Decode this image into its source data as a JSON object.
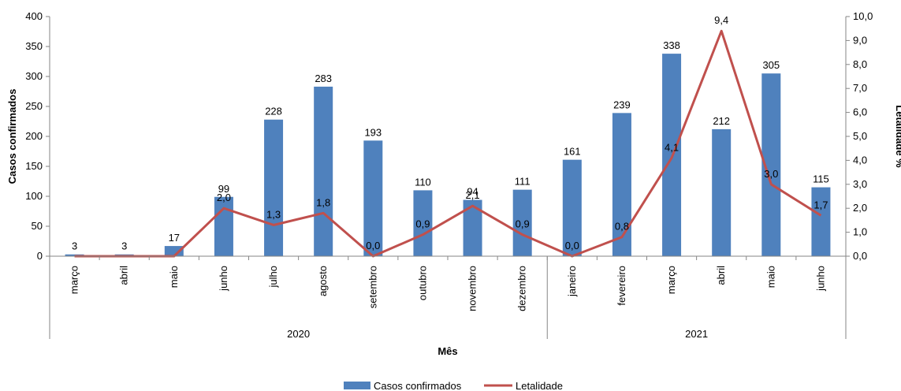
{
  "chart_data": {
    "type": "bar+line",
    "title": "",
    "xlabel": "Mês",
    "ylabel_left": "Casos confirmados",
    "ylabel_right": "Letalidade %",
    "categories": [
      "março",
      "abril",
      "maio",
      "junho",
      "julho",
      "agosto",
      "setembro",
      "outubro",
      "novembro",
      "dezembro",
      "janeiro",
      "fevereiro",
      "março",
      "abril",
      "maio",
      "junho"
    ],
    "year_groups": [
      {
        "label": "2020",
        "start": 0,
        "end": 9
      },
      {
        "label": "2021",
        "start": 10,
        "end": 15
      }
    ],
    "series": [
      {
        "name": "Casos confirmados",
        "kind": "bar",
        "axis": "left",
        "color": "#4F81BD",
        "values": [
          3,
          3,
          17,
          99,
          228,
          283,
          193,
          110,
          94,
          111,
          161,
          239,
          338,
          212,
          305,
          115
        ],
        "labels": [
          "3",
          "3",
          "17",
          "99",
          "228",
          "283",
          "193",
          "110",
          "94",
          "111",
          "161",
          "239",
          "338",
          "212",
          "305",
          "115"
        ]
      },
      {
        "name": "Letalidade",
        "kind": "line",
        "axis": "right",
        "color": "#C0504D",
        "values": [
          0,
          0,
          0,
          2.0,
          1.3,
          1.8,
          0.0,
          0.9,
          2.1,
          0.9,
          0.0,
          0.8,
          4.1,
          9.4,
          3.0,
          1.7
        ],
        "labels": [
          "",
          "",
          "",
          "2,0",
          "1,3",
          "1,8",
          "0,0",
          "0,9",
          "2,1",
          "0,9",
          "0,0",
          "0,8",
          "4,1",
          "9,4",
          "3,0",
          "1,7"
        ]
      }
    ],
    "y_left": {
      "min": 0,
      "max": 400,
      "step": 50,
      "ticks": [
        "0",
        "50",
        "100",
        "150",
        "200",
        "250",
        "300",
        "350",
        "400"
      ]
    },
    "y_right": {
      "min": 0,
      "max": 10,
      "step": 1,
      "ticks": [
        "0,0",
        "1,0",
        "2,0",
        "3,0",
        "4,0",
        "5,0",
        "6,0",
        "7,0",
        "8,0",
        "9,0",
        "10,0"
      ]
    },
    "grid": false,
    "legend_position": "bottom"
  }
}
